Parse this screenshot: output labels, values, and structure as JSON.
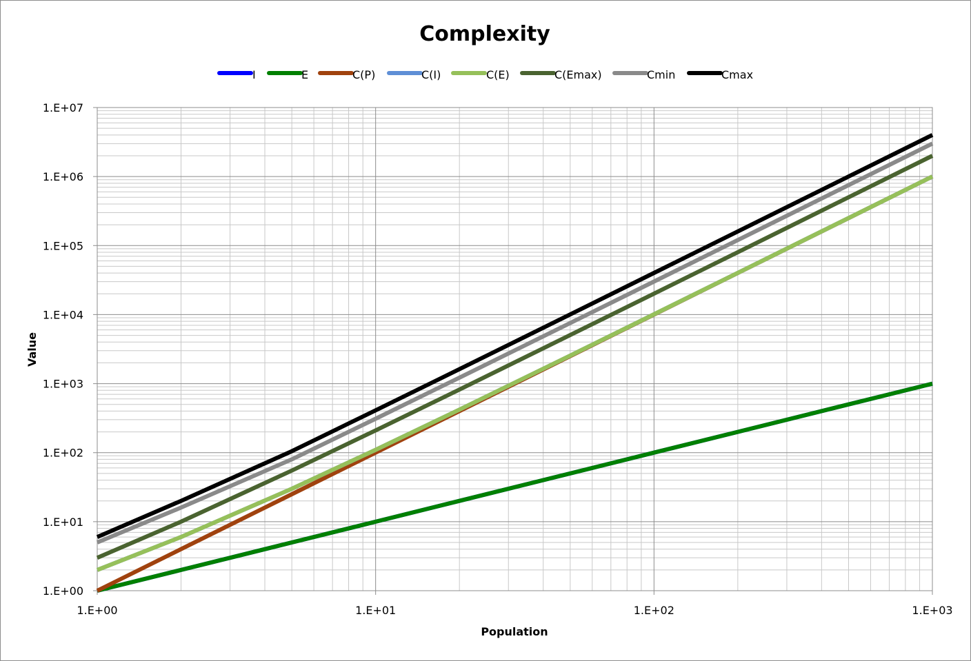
{
  "chart_data": {
    "type": "line",
    "title": "Complexity",
    "xlabel": "Population",
    "ylabel": "Value",
    "xscale": "log",
    "yscale": "log",
    "xlim": [
      1,
      1000
    ],
    "ylim": [
      1,
      10000000
    ],
    "x_ticks": [
      "1.E+00",
      "1.E+01",
      "1.E+02",
      "1.E+03"
    ],
    "y_ticks": [
      "1.E+00",
      "1.E+01",
      "1.E+02",
      "1.E+03",
      "1.E+04",
      "1.E+05",
      "1.E+06",
      "1.E+07"
    ],
    "grid": true,
    "legend_position": "top",
    "x": [
      1,
      2,
      5,
      10,
      20,
      50,
      100,
      200,
      500,
      1000
    ],
    "series": [
      {
        "name": "I",
        "color": "#0000ff",
        "values": [
          1,
          2,
          5,
          10,
          20,
          50,
          100,
          200,
          500,
          1000
        ]
      },
      {
        "name": "E",
        "color": "#008000",
        "values": [
          1,
          2,
          5,
          10,
          20,
          50,
          100,
          200,
          500,
          1000
        ]
      },
      {
        "name": "C(P)",
        "color": "#a0420e",
        "values": [
          1,
          4,
          25,
          100,
          400,
          2500,
          10000,
          40000,
          250000,
          1000000
        ]
      },
      {
        "name": "C(I)",
        "color": "#5f8fd6",
        "values": [
          2,
          6,
          30,
          110,
          420,
          2550,
          10100,
          40200,
          250500,
          1001000
        ]
      },
      {
        "name": "C(E)",
        "color": "#96c05a",
        "values": [
          2,
          6,
          30,
          110,
          420,
          2550,
          10100,
          40200,
          250500,
          1001000
        ]
      },
      {
        "name": "C(Emax)",
        "color": "#4a6330",
        "values": [
          3,
          10,
          55,
          210,
          820,
          5050,
          20100,
          80200,
          500500,
          2001000
        ]
      },
      {
        "name": "Cmin",
        "color": "#8a8a8a",
        "values": [
          5,
          16,
          80,
          310,
          1220,
          7550,
          30100,
          120200,
          750500,
          3001000
        ]
      },
      {
        "name": "Cmax",
        "color": "#000000",
        "values": [
          6,
          20,
          105,
          410,
          1620,
          10050,
          40100,
          160200,
          1000500,
          4001000
        ]
      }
    ]
  }
}
